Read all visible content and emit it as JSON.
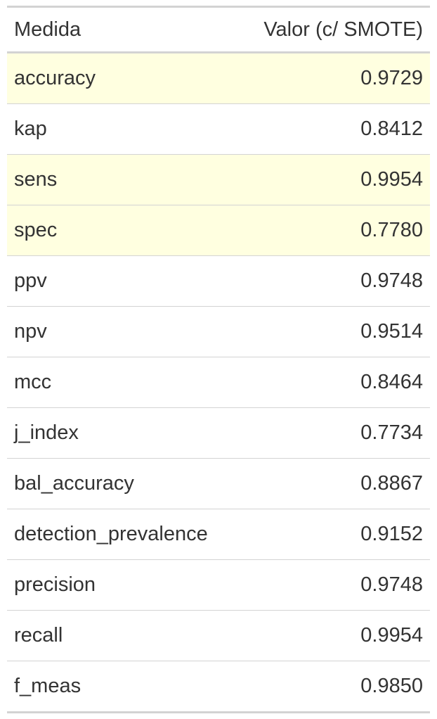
{
  "table": {
    "headers": {
      "measure": "Medida",
      "value": "Valor (c/ SMOTE)"
    },
    "highlight_color": "#ffffe0",
    "rows": [
      {
        "measure": "accuracy",
        "value": "0.9729",
        "highlight": true
      },
      {
        "measure": "kap",
        "value": "0.8412",
        "highlight": false
      },
      {
        "measure": "sens",
        "value": "0.9954",
        "highlight": true
      },
      {
        "measure": "spec",
        "value": "0.7780",
        "highlight": true
      },
      {
        "measure": "ppv",
        "value": "0.9748",
        "highlight": false
      },
      {
        "measure": "npv",
        "value": "0.9514",
        "highlight": false
      },
      {
        "measure": "mcc",
        "value": "0.8464",
        "highlight": false
      },
      {
        "measure": "j_index",
        "value": "0.7734",
        "highlight": false
      },
      {
        "measure": "bal_accuracy",
        "value": "0.8867",
        "highlight": false
      },
      {
        "measure": "detection_prevalence",
        "value": "0.9152",
        "highlight": false
      },
      {
        "measure": "precision",
        "value": "0.9748",
        "highlight": false
      },
      {
        "measure": "recall",
        "value": "0.9954",
        "highlight": false
      },
      {
        "measure": "f_meas",
        "value": "0.9850",
        "highlight": false
      }
    ]
  }
}
